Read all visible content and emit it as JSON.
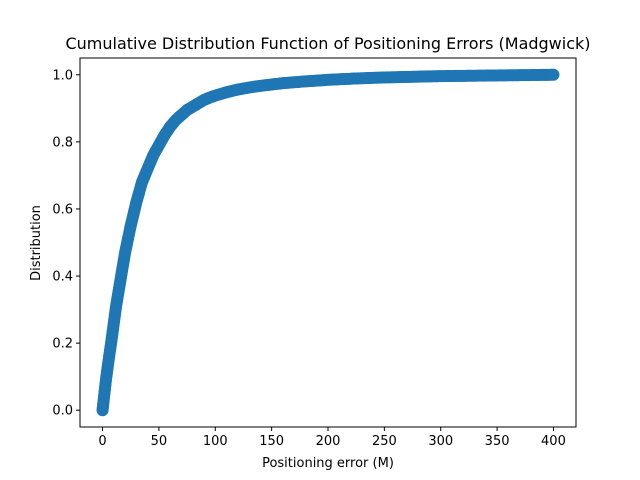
{
  "chart_data": {
    "type": "scatter",
    "title": "Cumulative Distribution Function of Positioning Errors (Madgwick)",
    "xlabel": "Positioning error (M)",
    "ylabel": "Distribution",
    "xlim": [
      -20,
      420
    ],
    "ylim": [
      -0.05,
      1.05
    ],
    "xticks": [
      0,
      50,
      100,
      150,
      200,
      250,
      300,
      350,
      400
    ],
    "yticks": [
      0.0,
      0.2,
      0.4,
      0.6,
      0.8,
      1.0
    ],
    "xtick_labels": [
      "0",
      "50",
      "100",
      "150",
      "200",
      "250",
      "300",
      "350",
      "400"
    ],
    "ytick_labels": [
      "0.0",
      "0.2",
      "0.4",
      "0.6",
      "0.8",
      "1.0"
    ],
    "grid": false,
    "marker_color": "#1f77b4",
    "series": [
      {
        "x": [
          0,
          1,
          3,
          5,
          8,
          10,
          12,
          15,
          18,
          20,
          25,
          30,
          35,
          40,
          45,
          50,
          55,
          60,
          65,
          70,
          75,
          80,
          85,
          90,
          95,
          100,
          110,
          120,
          130,
          140,
          150,
          160,
          175,
          200,
          225,
          250,
          275,
          300,
          325,
          350,
          375,
          400
        ],
        "y": [
          0.0,
          0.03,
          0.09,
          0.14,
          0.21,
          0.26,
          0.31,
          0.37,
          0.43,
          0.47,
          0.55,
          0.62,
          0.68,
          0.72,
          0.76,
          0.79,
          0.82,
          0.845,
          0.865,
          0.88,
          0.895,
          0.905,
          0.915,
          0.925,
          0.932,
          0.938,
          0.948,
          0.956,
          0.962,
          0.967,
          0.971,
          0.975,
          0.979,
          0.985,
          0.989,
          0.992,
          0.994,
          0.996,
          0.997,
          0.998,
          0.999,
          1.0
        ]
      }
    ]
  }
}
